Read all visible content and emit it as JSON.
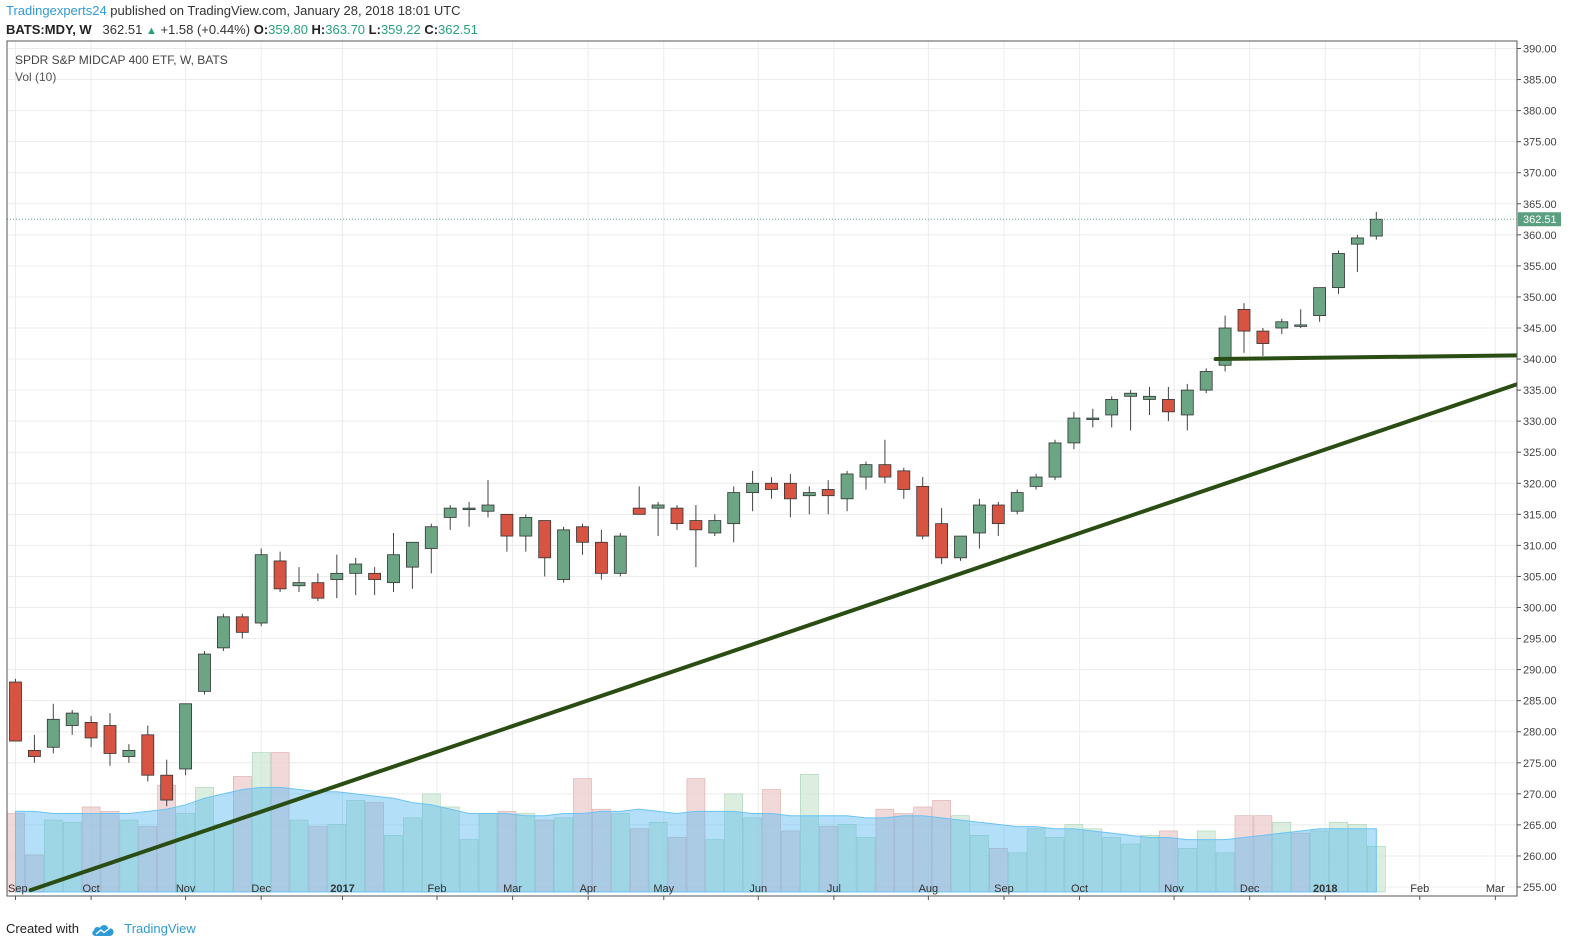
{
  "header": {
    "author": "Tradingexperts24",
    "published": " published on TradingView.com, January 28, 2018 18:01 UTC",
    "symbol": "BATS:MDY, W",
    "last": "362.51",
    "change": "+1.58 (+0.44%)",
    "o_label": "O:",
    "o_value": "359.80",
    "h_label": "H:",
    "h_value": "363.70",
    "l_label": "L:",
    "l_value": "359.22",
    "c_label": "C:",
    "c_value": "362.51"
  },
  "footer": {
    "created_with": "Created with",
    "brand": "TradingView"
  },
  "chart_data": {
    "type": "candlestick",
    "title": "SPDR S&P MIDCAP 400 ETF, W, BATS",
    "indicator": "Vol (10)",
    "ylim": [
      255,
      390
    ],
    "y_ticks": [
      "255.00",
      "260.00",
      "265.00",
      "270.00",
      "275.00",
      "280.00",
      "285.00",
      "290.00",
      "295.00",
      "300.00",
      "305.00",
      "310.00",
      "315.00",
      "320.00",
      "325.00",
      "330.00",
      "335.00",
      "340.00",
      "345.00",
      "350.00",
      "355.00",
      "360.00",
      "365.00",
      "370.00",
      "375.00",
      "380.00",
      "385.00",
      "390.00"
    ],
    "x_labels": [
      {
        "week": 0,
        "label": "Sep",
        "bold": false
      },
      {
        "week": 4,
        "label": "Oct",
        "bold": false
      },
      {
        "week": 9,
        "label": "Nov",
        "bold": false
      },
      {
        "week": 13,
        "label": "Dec",
        "bold": false
      },
      {
        "week": 17.3,
        "label": "2017",
        "bold": true
      },
      {
        "week": 22.3,
        "label": "Feb",
        "bold": false
      },
      {
        "week": 26.3,
        "label": "Mar",
        "bold": false
      },
      {
        "week": 30.3,
        "label": "Apr",
        "bold": false
      },
      {
        "week": 34.3,
        "label": "May",
        "bold": false
      },
      {
        "week": 39.3,
        "label": "Jun",
        "bold": false
      },
      {
        "week": 43.3,
        "label": "Jul",
        "bold": false
      },
      {
        "week": 48.3,
        "label": "Aug",
        "bold": false
      },
      {
        "week": 52.3,
        "label": "Sep",
        "bold": false
      },
      {
        "week": 56.3,
        "label": "Oct",
        "bold": false
      },
      {
        "week": 61.3,
        "label": "Nov",
        "bold": false
      },
      {
        "week": 65.3,
        "label": "Dec",
        "bold": false
      },
      {
        "week": 69.3,
        "label": "2018",
        "bold": true
      },
      {
        "week": 74.3,
        "label": "Feb",
        "bold": false
      },
      {
        "week": 78.3,
        "label": "Mar",
        "bold": false
      }
    ],
    "last_price": 362.51,
    "last_price_label": "362.51",
    "colors": {
      "up": "#6ba583",
      "down": "#d75442",
      "vol_ma": "#56b8f0",
      "trend": "#2a4d14"
    },
    "candles": [
      {
        "o": 288,
        "h": 288.5,
        "l": 278.5,
        "c": 278.5
      },
      {
        "o": 277,
        "h": 279.5,
        "l": 275,
        "c": 276
      },
      {
        "o": 277.5,
        "h": 284.5,
        "l": 276.5,
        "c": 282
      },
      {
        "o": 281,
        "h": 283.5,
        "l": 279.5,
        "c": 283
      },
      {
        "o": 281.5,
        "h": 282.5,
        "l": 277.5,
        "c": 279
      },
      {
        "o": 281,
        "h": 283,
        "l": 274.5,
        "c": 276.5
      },
      {
        "o": 276,
        "h": 278,
        "l": 275,
        "c": 277
      },
      {
        "o": 279.5,
        "h": 281,
        "l": 272,
        "c": 273
      },
      {
        "o": 273,
        "h": 275.5,
        "l": 268,
        "c": 269
      },
      {
        "o": 274,
        "h": 284.5,
        "l": 273,
        "c": 284.5
      },
      {
        "o": 286.5,
        "h": 293,
        "l": 286,
        "c": 292.5
      },
      {
        "o": 293.5,
        "h": 299,
        "l": 293,
        "c": 298.5
      },
      {
        "o": 298.5,
        "h": 299,
        "l": 295,
        "c": 296
      },
      {
        "o": 297.5,
        "h": 309.5,
        "l": 297,
        "c": 308.5
      },
      {
        "o": 307.5,
        "h": 309,
        "l": 302.5,
        "c": 303
      },
      {
        "o": 303.5,
        "h": 306.5,
        "l": 302.5,
        "c": 304
      },
      {
        "o": 304,
        "h": 305.5,
        "l": 301,
        "c": 301.5
      },
      {
        "o": 304.5,
        "h": 308.5,
        "l": 301.5,
        "c": 305.5
      },
      {
        "o": 305.5,
        "h": 308,
        "l": 302,
        "c": 307
      },
      {
        "o": 305.5,
        "h": 306.5,
        "l": 302,
        "c": 304.5
      },
      {
        "o": 304,
        "h": 312,
        "l": 302.5,
        "c": 308.5
      },
      {
        "o": 306.5,
        "h": 310.5,
        "l": 303,
        "c": 310.5
      },
      {
        "o": 309.5,
        "h": 313.5,
        "l": 305.5,
        "c": 313
      },
      {
        "o": 314.5,
        "h": 316.5,
        "l": 312.5,
        "c": 316
      },
      {
        "o": 316,
        "h": 317,
        "l": 313,
        "c": 316
      },
      {
        "o": 315.5,
        "h": 320.5,
        "l": 314.5,
        "c": 316.5
      },
      {
        "o": 315,
        "h": 315,
        "l": 309,
        "c": 311.5
      },
      {
        "o": 311.5,
        "h": 315,
        "l": 309,
        "c": 314.5
      },
      {
        "o": 314,
        "h": 314,
        "l": 305,
        "c": 308
      },
      {
        "o": 304.5,
        "h": 313,
        "l": 304,
        "c": 312.5
      },
      {
        "o": 313,
        "h": 313.5,
        "l": 308.5,
        "c": 310.5
      },
      {
        "o": 310.5,
        "h": 312.5,
        "l": 304.5,
        "c": 305.5
      },
      {
        "o": 305.5,
        "h": 312,
        "l": 305,
        "c": 311.5
      },
      {
        "o": 316,
        "h": 319.5,
        "l": 315,
        "c": 315
      },
      {
        "o": 316,
        "h": 317,
        "l": 311.5,
        "c": 316.5
      },
      {
        "o": 316,
        "h": 316.5,
        "l": 312.5,
        "c": 313.5
      },
      {
        "o": 314,
        "h": 316.5,
        "l": 306.5,
        "c": 312.5
      },
      {
        "o": 312,
        "h": 315,
        "l": 311.5,
        "c": 314
      },
      {
        "o": 313.5,
        "h": 319.5,
        "l": 310.5,
        "c": 318.5
      },
      {
        "o": 318.5,
        "h": 322,
        "l": 315.5,
        "c": 320
      },
      {
        "o": 320,
        "h": 321,
        "l": 317.5,
        "c": 319
      },
      {
        "o": 320,
        "h": 321.5,
        "l": 314.5,
        "c": 317.5
      },
      {
        "o": 318,
        "h": 319.5,
        "l": 315,
        "c": 318.5
      },
      {
        "o": 319,
        "h": 320.5,
        "l": 315,
        "c": 318
      },
      {
        "o": 317.5,
        "h": 322,
        "l": 315.5,
        "c": 321.5
      },
      {
        "o": 321,
        "h": 323.5,
        "l": 319,
        "c": 323
      },
      {
        "o": 323,
        "h": 327,
        "l": 320,
        "c": 321
      },
      {
        "o": 322,
        "h": 322.5,
        "l": 317.5,
        "c": 319
      },
      {
        "o": 319.5,
        "h": 321,
        "l": 311,
        "c": 311.5
      },
      {
        "o": 313.5,
        "h": 316,
        "l": 307,
        "c": 308
      },
      {
        "o": 308,
        "h": 311.5,
        "l": 307.5,
        "c": 311.5
      },
      {
        "o": 312,
        "h": 317.5,
        "l": 309.5,
        "c": 316.5
      },
      {
        "o": 316.5,
        "h": 317,
        "l": 311.5,
        "c": 313.5
      },
      {
        "o": 315.5,
        "h": 319,
        "l": 315,
        "c": 318.5
      },
      {
        "o": 319.5,
        "h": 321.5,
        "l": 319,
        "c": 321
      },
      {
        "o": 321,
        "h": 327,
        "l": 320.5,
        "c": 326.5
      },
      {
        "o": 326.5,
        "h": 331.5,
        "l": 325.5,
        "c": 330.5
      },
      {
        "o": 330.5,
        "h": 332,
        "l": 329,
        "c": 330.5
      },
      {
        "o": 331,
        "h": 334,
        "l": 329,
        "c": 333.5
      },
      {
        "o": 334,
        "h": 335,
        "l": 328.5,
        "c": 334.5
      },
      {
        "o": 333.5,
        "h": 335.5,
        "l": 331,
        "c": 334
      },
      {
        "o": 333.5,
        "h": 335.5,
        "l": 330,
        "c": 331.5
      },
      {
        "o": 331,
        "h": 336,
        "l": 328.5,
        "c": 335
      },
      {
        "o": 335,
        "h": 338.5,
        "l": 334.5,
        "c": 338
      },
      {
        "o": 339,
        "h": 347,
        "l": 338,
        "c": 345
      },
      {
        "o": 348,
        "h": 349,
        "l": 341,
        "c": 344.5
      },
      {
        "o": 344.5,
        "h": 345,
        "l": 340.5,
        "c": 342.5
      },
      {
        "o": 345,
        "h": 346.5,
        "l": 344,
        "c": 346
      },
      {
        "o": 345.5,
        "h": 348,
        "l": 345,
        "c": 345.5
      },
      {
        "o": 347,
        "h": 351.5,
        "l": 346,
        "c": 351.5
      },
      {
        "o": 351.5,
        "h": 357.5,
        "l": 350.5,
        "c": 357
      },
      {
        "o": 358.5,
        "h": 360,
        "l": 354,
        "c": 359.5
      },
      {
        "o": 359.8,
        "h": 363.7,
        "l": 359.22,
        "c": 362.51
      }
    ],
    "volume": {
      "unit": "fraction of volume panel height",
      "bars": [
        0.36,
        0.17,
        0.33,
        0.32,
        0.39,
        0.37,
        0.33,
        0.3,
        0.49,
        0.36,
        0.48,
        0.31,
        0.53,
        0.64,
        0.64,
        0.33,
        0.3,
        0.31,
        0.42,
        0.41,
        0.26,
        0.34,
        0.45,
        0.39,
        0.24,
        0.36,
        0.37,
        0.36,
        0.33,
        0.34,
        0.52,
        0.38,
        0.36,
        0.29,
        0.32,
        0.25,
        0.52,
        0.24,
        0.45,
        0.34,
        0.47,
        0.28,
        0.54,
        0.3,
        0.31,
        0.25,
        0.38,
        0.36,
        0.39,
        0.42,
        0.35,
        0.26,
        0.2,
        0.18,
        0.29,
        0.25,
        0.31,
        0.29,
        0.25,
        0.22,
        0.26,
        0.28,
        0.2,
        0.28,
        0.18,
        0.35,
        0.35,
        0.32,
        0.27,
        0.28,
        0.32,
        0.31,
        0.21
      ],
      "ma": [
        0.37,
        0.37,
        0.36,
        0.36,
        0.36,
        0.36,
        0.36,
        0.37,
        0.38,
        0.4,
        0.43,
        0.45,
        0.47,
        0.48,
        0.48,
        0.47,
        0.46,
        0.46,
        0.45,
        0.44,
        0.43,
        0.41,
        0.4,
        0.38,
        0.36,
        0.36,
        0.36,
        0.35,
        0.35,
        0.36,
        0.36,
        0.37,
        0.37,
        0.38,
        0.37,
        0.36,
        0.37,
        0.37,
        0.37,
        0.36,
        0.36,
        0.35,
        0.35,
        0.35,
        0.35,
        0.34,
        0.34,
        0.35,
        0.35,
        0.34,
        0.33,
        0.32,
        0.31,
        0.3,
        0.3,
        0.29,
        0.29,
        0.28,
        0.27,
        0.26,
        0.25,
        0.25,
        0.24,
        0.24,
        0.24,
        0.25,
        0.26,
        0.27,
        0.28,
        0.29,
        0.29,
        0.29,
        0.29
      ],
      "up_flags": [
        0,
        0,
        1,
        1,
        0,
        0,
        1,
        0,
        0,
        1,
        1,
        1,
        0,
        1,
        0,
        1,
        0,
        1,
        1,
        0,
        1,
        1,
        1,
        1,
        1,
        1,
        0,
        1,
        0,
        1,
        0,
        0,
        1,
        0,
        1,
        0,
        0,
        1,
        1,
        1,
        0,
        0,
        1,
        0,
        1,
        1,
        0,
        0,
        0,
        0,
        1,
        1,
        0,
        1,
        1,
        1,
        1,
        1,
        1,
        1,
        1,
        0,
        1,
        1,
        1,
        0,
        0,
        1,
        0,
        1,
        1,
        1,
        1
      ]
    },
    "trendlines": [
      {
        "from": {
          "week": 0.8,
          "price": 254.5
        },
        "to": {
          "week": 79.5,
          "price": 336
        }
      },
      {
        "from": {
          "week": 63.5,
          "price": 340.0
        },
        "to": {
          "week": 79.5,
          "price": 340.6
        }
      }
    ]
  }
}
